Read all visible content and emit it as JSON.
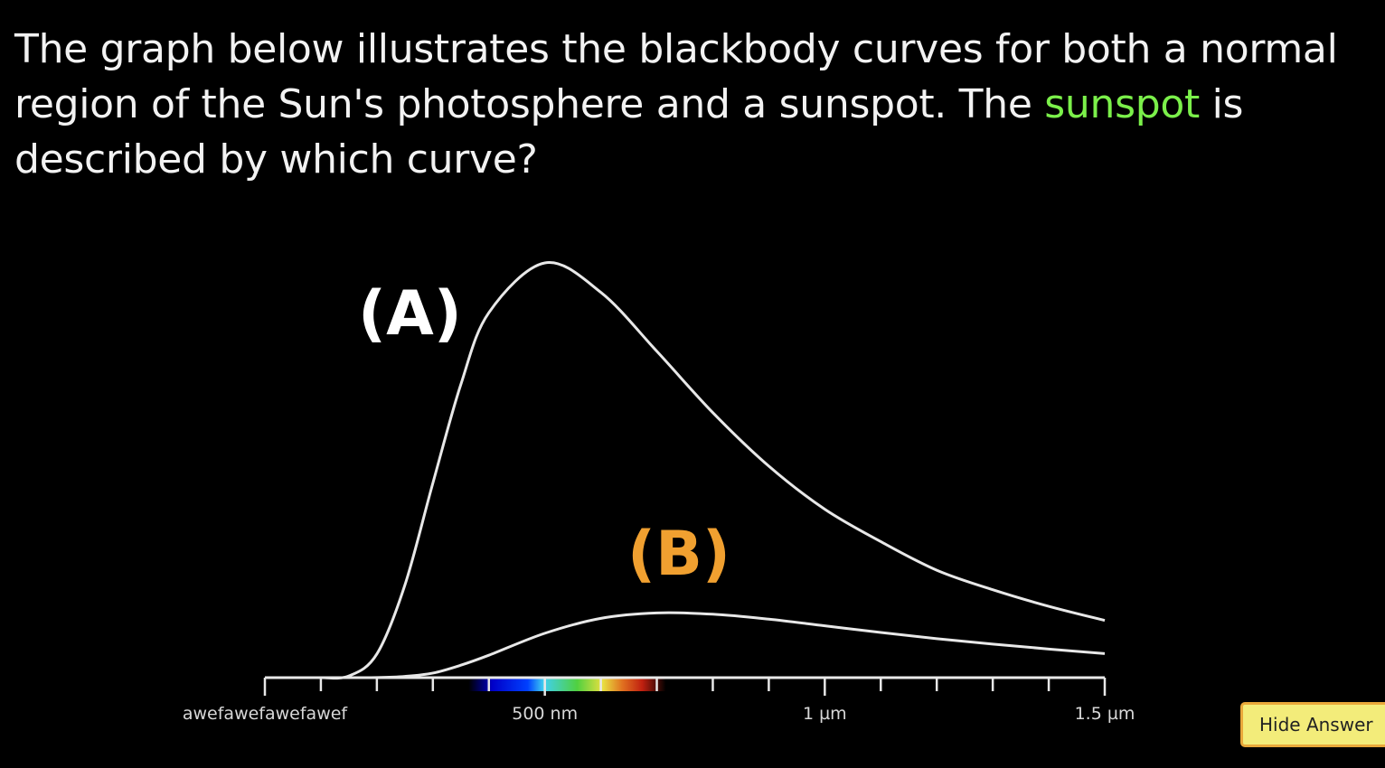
{
  "question": {
    "before": "The graph below illustrates the blackbody curves for both a normal region of the Sun's photosphere and a sunspot. The ",
    "highlight": "sunspot",
    "after": " is described by which curve?",
    "highlight_color": "#7bf04a"
  },
  "hide_answer_label": "Hide Answer",
  "chart_data": {
    "type": "line",
    "xlabel": "",
    "ylabel": "",
    "xlim": [
      0,
      1500
    ],
    "x_unit": "nm",
    "grid": false,
    "x_ticks": [
      0,
      100,
      200,
      300,
      400,
      500,
      600,
      700,
      800,
      900,
      1000,
      1100,
      1200,
      1300,
      1400,
      1500
    ],
    "tick_labels": [
      {
        "x": 0,
        "label": "awefawefawefawef"
      },
      {
        "x": 500,
        "label": "500 nm"
      },
      {
        "x": 1000,
        "label": "1 µm"
      },
      {
        "x": 1500,
        "label": "1.5 µm"
      }
    ],
    "visible_spectrum_nm": [
      380,
      700
    ],
    "x": [
      100,
      150,
      200,
      250,
      300,
      350,
      400,
      500,
      600,
      700,
      800,
      900,
      1000,
      1100,
      1200,
      1300,
      1400,
      1500
    ],
    "series": [
      {
        "label": "(A)",
        "color": "#e8e8e8",
        "label_color": "#ffffff",
        "values": [
          0,
          0.004,
          0.057,
          0.223,
          0.469,
          0.707,
          0.88,
          1.0,
          0.929,
          0.787,
          0.639,
          0.51,
          0.406,
          0.328,
          0.259,
          0.212,
          0.172,
          0.138
        ]
      },
      {
        "label": "(B)",
        "color": "#e8e8e8",
        "label_color": "#f0a030",
        "values": [
          0,
          0,
          0.0002,
          0.003,
          0.011,
          0.03,
          0.054,
          0.107,
          0.143,
          0.156,
          0.153,
          0.141,
          0.125,
          0.109,
          0.094,
          0.081,
          0.069,
          0.058
        ]
      }
    ]
  }
}
